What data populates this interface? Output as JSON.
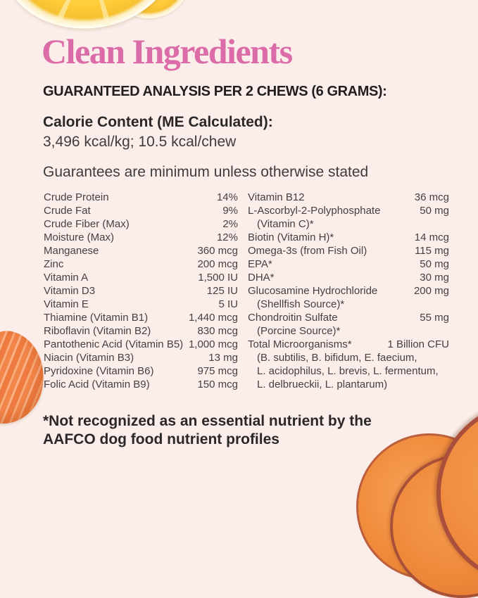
{
  "header": {
    "title": "Clean Ingredients",
    "analysis_heading": "GUARANTEED ANALYSIS PER 2 CHEWS (6 GRAMS):"
  },
  "calorie": {
    "heading": "Calorie Content (ME Calculated):",
    "value": "3,496 kcal/kg; 10.5 kcal/chew"
  },
  "guarantee_note": "Guarantees are minimum unless otherwise stated",
  "analysis": {
    "left_column": [
      {
        "label": "Crude Protein",
        "value": "14%"
      },
      {
        "label": "Crude Fat",
        "value": "9%"
      },
      {
        "label": "Crude Fiber (Max)",
        "value": "2%"
      },
      {
        "label": "Moisture (Max)",
        "value": "12%"
      },
      {
        "label": "Manganese",
        "value": "360 mcg"
      },
      {
        "label": "Zinc",
        "value": "200 mcg"
      },
      {
        "label": "Vitamin A",
        "value": "1,500 IU"
      },
      {
        "label": "Vitamin D3",
        "value": "125 IU"
      },
      {
        "label": "Vitamin E",
        "value": "5 IU"
      },
      {
        "label": "Thiamine (Vitamin B1)",
        "value": "1,440 mcg"
      },
      {
        "label": "Riboflavin (Vitamin B2)",
        "value": "830 mcg"
      },
      {
        "label": "Pantothenic Acid (Vitamin B5)",
        "value": "1,000 mcg"
      },
      {
        "label": "Niacin (Vitamin B3)",
        "value": "13 mg"
      },
      {
        "label": "Pyridoxine (Vitamin B6)",
        "value": "975 mcg"
      },
      {
        "label": "Folic Acid (Vitamin B9)",
        "value": "150 mcg"
      }
    ],
    "right_column": [
      {
        "label": "Vitamin B12",
        "value": "36 mcg"
      },
      {
        "label": "L-Ascorbyl-2-Polyphosphate",
        "value": "50 mg",
        "sub": [
          "(Vitamin C)*"
        ]
      },
      {
        "label": "Biotin (Vitamin H)*",
        "value": "14 mcg"
      },
      {
        "label": "Omega-3s (from Fish Oil)",
        "value": "115 mg"
      },
      {
        "label": "EPA*",
        "value": "50 mg"
      },
      {
        "label": "DHA*",
        "value": "30 mg"
      },
      {
        "label": "Glucosamine Hydrochloride",
        "value": "200 mg",
        "sub": [
          "(Shellfish Source)*"
        ]
      },
      {
        "label": "Chondroitin Sulfate",
        "value": "55 mg",
        "sub": [
          "(Porcine Source)*"
        ]
      },
      {
        "label": "Total Microorganisms*",
        "value": "1 Billion CFU",
        "sub": [
          "(B. subtilis, B. bifidum, E. faecium,",
          "L. acidophilus, L. brevis, L. fermentum,",
          "L. delbrueckii, L. plantarum)"
        ]
      }
    ]
  },
  "footnote": {
    "line1": "*Not recognized as an essential nutrient by the",
    "line2": "AAFCO dog food nutrient profiles"
  },
  "decorations": {
    "top_left": "lemon-slices-photo",
    "bottom_left": "salmon-fillet-photo",
    "bottom_right": "sweet-potato-slices-photo"
  },
  "colors": {
    "background": "#FBEEEA",
    "title_pink": "#DB6CA8",
    "heading_black": "#221E1F",
    "body_text": "#454041",
    "lemon_yellow": "#FFCB38",
    "salmon_orange": "#F2854A",
    "sweet_potato_flesh": "#EE883C",
    "sweet_potato_skin": "#A94F3C"
  }
}
